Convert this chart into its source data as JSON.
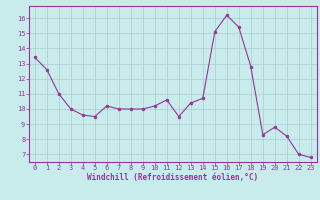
{
  "x": [
    0,
    1,
    2,
    3,
    4,
    5,
    6,
    7,
    8,
    9,
    10,
    11,
    12,
    13,
    14,
    15,
    16,
    17,
    18,
    19,
    20,
    21,
    22,
    23
  ],
  "y": [
    13.4,
    12.6,
    11.0,
    10.0,
    9.6,
    9.5,
    10.2,
    10.0,
    10.0,
    10.0,
    10.2,
    10.6,
    9.5,
    10.4,
    10.7,
    15.1,
    16.2,
    15.4,
    12.8,
    8.3,
    8.8,
    8.2,
    7.0,
    6.8
  ],
  "line_color": "#993399",
  "marker_color": "#993399",
  "bg_color": "#c8ecec",
  "grid_color": "#aacccc",
  "xlabel": "Windchill (Refroidissement éolien,°C)",
  "xtick_labels": [
    "0",
    "1",
    "2",
    "3",
    "4",
    "5",
    "6",
    "7",
    "8",
    "9",
    "10",
    "11",
    "12",
    "13",
    "14",
    "15",
    "16",
    "17",
    "18",
    "19",
    "20",
    "21",
    "22",
    "23"
  ],
  "ytick_labels": [
    "7",
    "8",
    "9",
    "10",
    "11",
    "12",
    "13",
    "14",
    "15",
    "16"
  ],
  "ylim": [
    6.5,
    16.8
  ],
  "xlim": [
    -0.5,
    23.5
  ],
  "tick_color": "#993399",
  "spine_color": "#993399",
  "label_fontsize": 5.0,
  "xlabel_fontsize": 5.5
}
